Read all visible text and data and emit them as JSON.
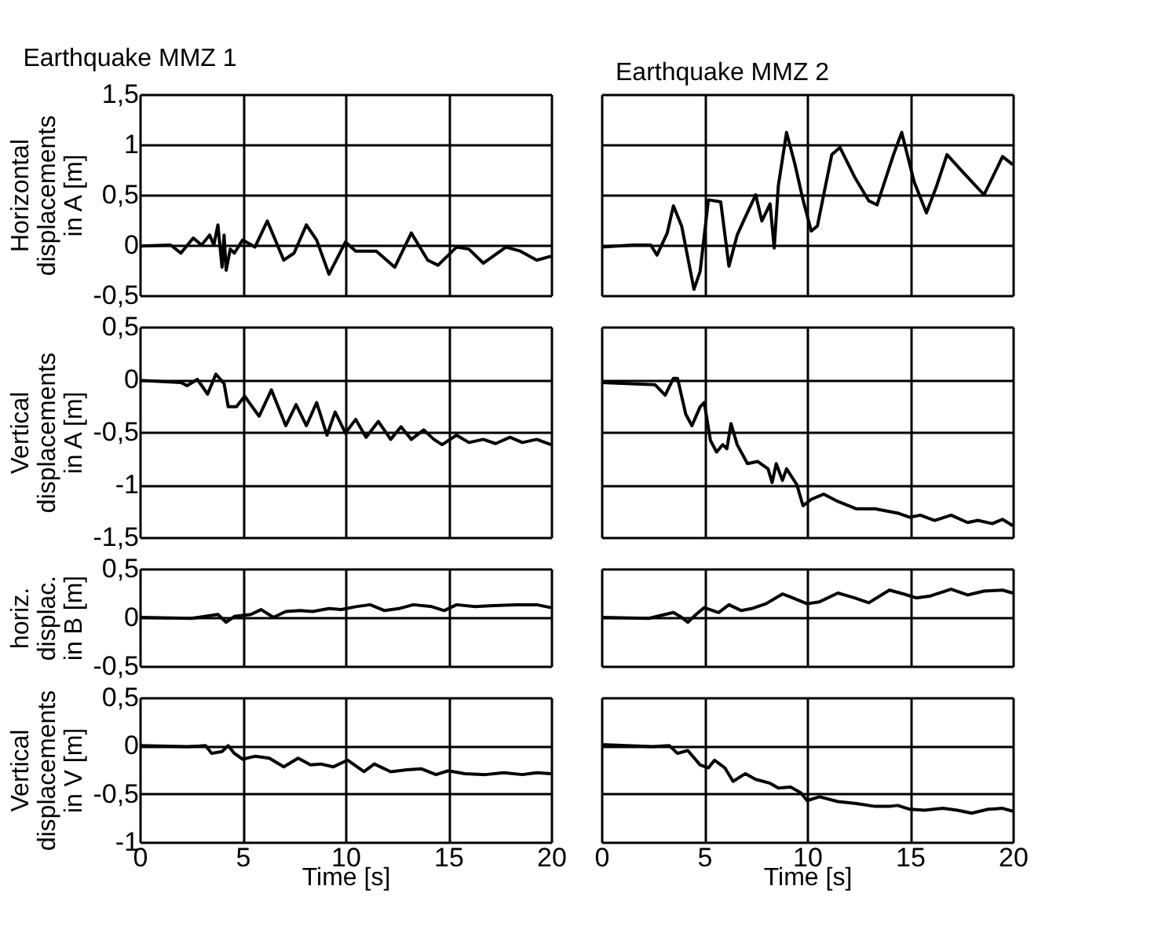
{
  "chart_data": [
    {
      "type": "line",
      "title": "Earthquake  MMZ 1",
      "ylabel": "Horizontal\ndisplacements\nin A  [m]",
      "color": "#000000",
      "grid": true,
      "tick_labels": "y",
      "xlim": [
        0,
        20
      ],
      "xticks": [
        0,
        5,
        10,
        15,
        20
      ],
      "ylim": [
        -0.5,
        1.5
      ],
      "yticks": [
        {
          "value": -0.5,
          "label": "-0,5"
        },
        0,
        {
          "value": 0.5,
          "label": "0,5"
        },
        1,
        {
          "value": 1.5,
          "label": "1,5"
        }
      ],
      "x": [
        0,
        1.5,
        2,
        2.6,
        3,
        3.4,
        3.6,
        3.8,
        4.0,
        4.1,
        4.2,
        4.4,
        4.6,
        5,
        5.6,
        6.2,
        7.0,
        7.5,
        8.1,
        8.6,
        9.2,
        10,
        10.5,
        11.5,
        12.4,
        13.2,
        14,
        14.5,
        15.4,
        16,
        16.7,
        17.8,
        18.5,
        19.3,
        20
      ],
      "values": [
        -0.01,
        0,
        -0.08,
        0.07,
        0,
        0.1,
        0,
        0.2,
        -0.22,
        0.1,
        -0.25,
        -0.04,
        -0.08,
        0.05,
        -0.02,
        0.24,
        -0.15,
        -0.08,
        0.2,
        0.05,
        -0.29,
        0.03,
        -0.06,
        -0.06,
        -0.22,
        0.12,
        -0.15,
        -0.2,
        -0.02,
        -0.04,
        -0.18,
        -0.02,
        -0.06,
        -0.15,
        -0.11
      ]
    },
    {
      "type": "line",
      "title": "Earthquake  MMZ 2",
      "color": "#000000",
      "grid": true,
      "tick_labels": false,
      "xlim": [
        0,
        20
      ],
      "xticks": [
        {
          "value": 0,
          "label": null
        },
        {
          "value": 5,
          "label": null
        },
        {
          "value": 10,
          "label": null
        },
        {
          "value": 15,
          "label": null
        },
        {
          "value": 20,
          "label": null
        }
      ],
      "ylim": [
        -0.5,
        1.5
      ],
      "yticks": [
        {
          "value": -0.5,
          "label": null
        },
        {
          "value": 0,
          "label": null
        },
        {
          "value": 0.5,
          "label": null
        },
        {
          "value": 1,
          "label": null
        },
        {
          "value": 1.5,
          "label": null
        }
      ],
      "x": [
        0,
        1.5,
        2.4,
        2.7,
        3.2,
        3.5,
        3.9,
        4.5,
        4.8,
        5.2,
        5.8,
        6.2,
        6.6,
        7.0,
        7.5,
        7.8,
        8.2,
        8.4,
        8.6,
        9.0,
        9.4,
        9.8,
        10.2,
        10.5,
        11.2,
        11.6,
        12.3,
        13,
        13.4,
        14.2,
        14.6,
        15.2,
        15.8,
        16.3,
        16.8,
        17.6,
        18.6,
        19.5,
        20
      ],
      "values": [
        -0.02,
        0,
        0,
        -0.1,
        0.12,
        0.39,
        0.19,
        -0.44,
        -0.26,
        0.45,
        0.43,
        -0.21,
        0.1,
        0.28,
        0.5,
        0.24,
        0.41,
        -0.03,
        0.59,
        1.12,
        0.81,
        0.45,
        0.14,
        0.19,
        0.9,
        0.97,
        0.68,
        0.44,
        0.4,
        0.9,
        1.12,
        0.63,
        0.32,
        0.59,
        0.9,
        0.72,
        0.5,
        0.88,
        0.8
      ]
    },
    {
      "type": "line",
      "ylabel": "Vertical\ndisplacements\nin A  [m]",
      "color": "#000000",
      "grid": true,
      "tick_labels": "y",
      "xlim": [
        0,
        20
      ],
      "xticks": [
        0,
        5,
        10,
        15,
        20
      ],
      "ylim": [
        -1.5,
        0.5
      ],
      "yticks": [
        {
          "value": -1.5,
          "label": "-1,5"
        },
        -1,
        {
          "value": -0.5,
          "label": "-0,5"
        },
        0,
        {
          "value": 0.5,
          "label": "0,5"
        }
      ],
      "x": [
        0,
        2,
        2.3,
        2.8,
        3.3,
        3.7,
        4.1,
        4.3,
        4.7,
        5.1,
        5.8,
        6.4,
        7.1,
        7.6,
        8.1,
        8.6,
        9.1,
        9.5,
        10.0,
        10.5,
        11,
        11.6,
        12.2,
        12.7,
        13.2,
        13.8,
        14.3,
        14.7,
        15.4,
        16,
        16.7,
        17.3,
        18,
        18.6,
        19.3,
        20
      ],
      "values": [
        -0.01,
        -0.03,
        -0.06,
        0,
        -0.14,
        0.05,
        -0.04,
        -0.26,
        -0.26,
        -0.16,
        -0.35,
        -0.1,
        -0.44,
        -0.24,
        -0.44,
        -0.22,
        -0.53,
        -0.31,
        -0.51,
        -0.38,
        -0.55,
        -0.4,
        -0.57,
        -0.45,
        -0.57,
        -0.48,
        -0.57,
        -0.62,
        -0.53,
        -0.6,
        -0.57,
        -0.61,
        -0.55,
        -0.6,
        -0.57,
        -0.62
      ]
    },
    {
      "type": "line",
      "color": "#000000",
      "grid": true,
      "tick_labels": false,
      "xlim": [
        0,
        20
      ],
      "xticks": [
        {
          "value": 0,
          "label": null
        },
        {
          "value": 5,
          "label": null
        },
        {
          "value": 10,
          "label": null
        },
        {
          "value": 15,
          "label": null
        },
        {
          "value": 20,
          "label": null
        }
      ],
      "ylim": [
        -1.5,
        0.5
      ],
      "yticks": [
        {
          "value": -1.5,
          "label": null
        },
        {
          "value": -1,
          "label": null
        },
        {
          "value": -0.5,
          "label": null
        },
        {
          "value": 0,
          "label": null
        },
        {
          "value": 0.5,
          "label": null
        }
      ],
      "x": [
        0,
        2.6,
        3.1,
        3.5,
        3.7,
        4.1,
        4.4,
        4.8,
        5.0,
        5.3,
        5.6,
        5.9,
        6.1,
        6.3,
        6.6,
        7.1,
        7.6,
        8.1,
        8.3,
        8.5,
        8.8,
        9.0,
        9.5,
        9.8,
        10.2,
        10.8,
        11.5,
        12.4,
        13.3,
        14.4,
        15,
        15.5,
        16.2,
        17,
        17.8,
        18.3,
        19.0,
        19.5,
        20
      ],
      "values": [
        -0.03,
        -0.05,
        -0.15,
        0.01,
        0.01,
        -0.33,
        -0.44,
        -0.26,
        -0.22,
        -0.58,
        -0.69,
        -0.62,
        -0.66,
        -0.42,
        -0.62,
        -0.8,
        -0.78,
        -0.85,
        -0.98,
        -0.8,
        -0.96,
        -0.85,
        -1.0,
        -1.2,
        -1.14,
        -1.09,
        -1.16,
        -1.23,
        -1.23,
        -1.27,
        -1.31,
        -1.29,
        -1.34,
        -1.29,
        -1.36,
        -1.34,
        -1.37,
        -1.33,
        -1.39
      ]
    },
    {
      "type": "line",
      "ylabel": "horiz.\ndisplac.\nin B [m]",
      "color": "#000000",
      "grid": true,
      "tick_labels": "y",
      "xlim": [
        0,
        20
      ],
      "xticks": [
        0,
        5,
        10,
        15,
        20
      ],
      "ylim": [
        -0.5,
        0.5
      ],
      "yticks": [
        {
          "value": -0.5,
          "label": "-0,5"
        },
        0,
        {
          "value": 0.5,
          "label": "0,5"
        }
      ],
      "x": [
        0,
        2.5,
        3.8,
        4.2,
        4.6,
        5.4,
        5.9,
        6.5,
        7.1,
        7.8,
        8.4,
        9.2,
        9.8,
        10.5,
        11.2,
        11.9,
        12.6,
        13.3,
        14.2,
        14.8,
        15.4,
        16.3,
        17.2,
        18.3,
        19.3,
        20
      ],
      "values": [
        0,
        -0.01,
        0.03,
        -0.05,
        0.01,
        0.03,
        0.08,
        0,
        0.06,
        0.07,
        0.06,
        0.09,
        0.08,
        0.11,
        0.13,
        0.07,
        0.09,
        0.13,
        0.11,
        0.07,
        0.13,
        0.11,
        0.12,
        0.13,
        0.13,
        0.1
      ]
    },
    {
      "type": "line",
      "color": "#000000",
      "grid": true,
      "tick_labels": false,
      "xlim": [
        0,
        20
      ],
      "xticks": [
        {
          "value": 0,
          "label": null
        },
        {
          "value": 5,
          "label": null
        },
        {
          "value": 10,
          "label": null
        },
        {
          "value": 15,
          "label": null
        },
        {
          "value": 20,
          "label": null
        }
      ],
      "ylim": [
        -0.5,
        0.5
      ],
      "yticks": [
        {
          "value": -0.5,
          "label": null
        },
        {
          "value": 0,
          "label": null
        },
        {
          "value": 0.5,
          "label": null
        }
      ],
      "x": [
        0,
        2.3,
        3.1,
        3.5,
        3.9,
        4.2,
        4.6,
        5.0,
        5.7,
        6.2,
        6.8,
        7.3,
        8,
        8.8,
        9.3,
        10,
        10.6,
        11.5,
        12.3,
        13,
        14,
        14.7,
        15.3,
        16,
        17,
        17.8,
        18.6,
        19.5,
        20
      ],
      "values": [
        0,
        -0.01,
        0.03,
        0.05,
        0,
        -0.05,
        0.03,
        0.1,
        0.05,
        0.13,
        0.07,
        0.09,
        0.14,
        0.24,
        0.2,
        0.14,
        0.16,
        0.25,
        0.2,
        0.15,
        0.28,
        0.24,
        0.2,
        0.22,
        0.29,
        0.23,
        0.27,
        0.28,
        0.25
      ]
    },
    {
      "type": "line",
      "ylabel": "Vertical\ndisplacements\nin V  [m]",
      "xlabel": "Time  [s]",
      "color": "#000000",
      "grid": true,
      "xlim": [
        0,
        20
      ],
      "xticks": [
        0,
        5,
        10,
        15,
        20
      ],
      "ylim": [
        -1,
        0.5
      ],
      "yticks": [
        -1,
        {
          "value": -0.5,
          "label": "-0,5"
        },
        0,
        {
          "value": 0.5,
          "label": "0,5"
        }
      ],
      "x": [
        0,
        2.3,
        3.2,
        3.5,
        4.0,
        4.3,
        4.6,
        5,
        5.6,
        6.3,
        7,
        7.7,
        8.3,
        8.8,
        9.4,
        10.1,
        10.9,
        11.4,
        12.2,
        13,
        13.7,
        14.4,
        15,
        15.8,
        16.8,
        17.7,
        18.6,
        19.3,
        20
      ],
      "values": [
        0,
        -0.01,
        0,
        -0.08,
        -0.06,
        0,
        -0.08,
        -0.14,
        -0.11,
        -0.13,
        -0.22,
        -0.13,
        -0.2,
        -0.19,
        -0.22,
        -0.15,
        -0.27,
        -0.19,
        -0.27,
        -0.25,
        -0.24,
        -0.3,
        -0.26,
        -0.29,
        -0.3,
        -0.28,
        -0.3,
        -0.28,
        -0.29
      ]
    },
    {
      "type": "line",
      "xlabel": "Time  [s]",
      "color": "#000000",
      "grid": true,
      "tick_labels": "x",
      "xlim": [
        0,
        20
      ],
      "xticks": [
        0,
        5,
        10,
        15,
        20
      ],
      "ylim": [
        -1,
        0.5
      ],
      "yticks": [
        {
          "value": -1,
          "label": null
        },
        {
          "value": -0.5,
          "label": null
        },
        {
          "value": 0,
          "label": null
        },
        {
          "value": 0.5,
          "label": null
        }
      ],
      "x": [
        0,
        2.5,
        3.3,
        3.7,
        4.2,
        4.8,
        5.2,
        5.5,
        6.0,
        6.4,
        7.0,
        7.5,
        8.2,
        8.6,
        9.2,
        9.7,
        10.0,
        10.6,
        11.5,
        12.4,
        13.3,
        14.0,
        14.4,
        15,
        15.7,
        16.6,
        17.3,
        18,
        18.8,
        19.5,
        20
      ],
      "values": [
        0.01,
        -0.01,
        0,
        -0.08,
        -0.05,
        -0.2,
        -0.23,
        -0.15,
        -0.23,
        -0.37,
        -0.29,
        -0.35,
        -0.39,
        -0.44,
        -0.43,
        -0.49,
        -0.57,
        -0.53,
        -0.58,
        -0.6,
        -0.63,
        -0.63,
        -0.62,
        -0.66,
        -0.67,
        -0.65,
        -0.67,
        -0.7,
        -0.66,
        -0.65,
        -0.68
      ]
    }
  ]
}
